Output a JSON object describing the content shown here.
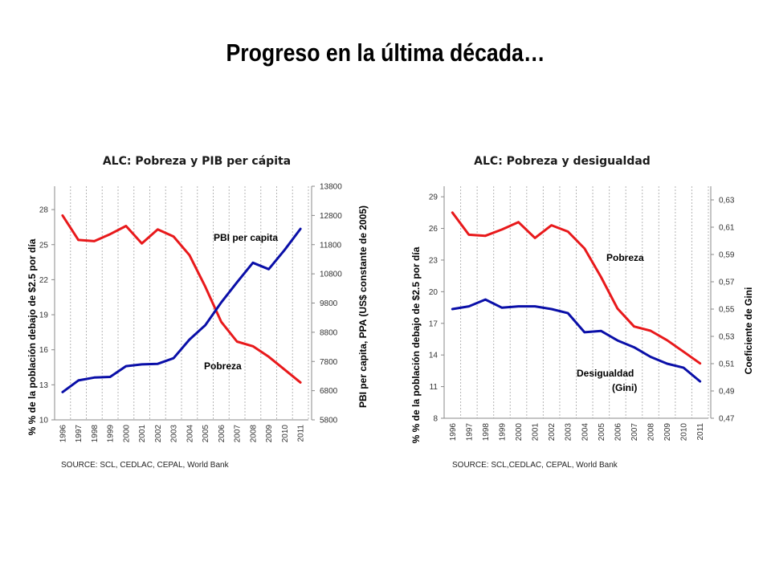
{
  "slide": {
    "title": "Progreso en la última década…"
  },
  "chart_data": [
    {
      "type": "line",
      "title": "ALC: Pobreza y PIB per cápita",
      "ylabel": "% % de la población debajo de $2.5 por día",
      "y2label": "PBI per capita, PPA (US$ constante de 2005)",
      "source": "SOURCE: SCL, CEDLAC, CEPAL, World Bank",
      "x": [
        "1996",
        "1997",
        "1998",
        "1999",
        "2000",
        "2001",
        "2002",
        "2003",
        "2004",
        "2005",
        "2006",
        "2007",
        "2008",
        "2009",
        "2010",
        "2011"
      ],
      "ylim": [
        10,
        30
      ],
      "yticks": [
        10,
        13,
        16,
        19,
        22,
        25,
        28
      ],
      "y2lim": [
        5800,
        13800
      ],
      "y2ticks": [
        5800,
        6800,
        7800,
        8800,
        9800,
        10800,
        11800,
        12800,
        13800
      ],
      "grid": true,
      "series": [
        {
          "name": "Pobreza",
          "axis": "left",
          "color": "#e8191b",
          "values": [
            27.5,
            25.4,
            25.3,
            25.9,
            26.6,
            25.1,
            26.3,
            25.7,
            24.1,
            21.4,
            18.4,
            16.7,
            16.3,
            15.4,
            14.3,
            13.2
          ]
        },
        {
          "name": "PBI per capita",
          "axis": "right",
          "color": "#0a0fa8",
          "values": [
            6750,
            7150,
            7250,
            7270,
            7640,
            7700,
            7720,
            7910,
            8550,
            9040,
            9820,
            10510,
            11180,
            10960,
            11620,
            12340
          ]
        }
      ]
    },
    {
      "type": "line",
      "title": "ALC: Pobreza y desigualdad",
      "ylabel": "% % de la población debajo de $2.5 por día",
      "y2label": "Coeficiente de Gini",
      "source": "SOURCE: SCL,CEDLAC, CEPAL, World Bank",
      "x": [
        "1996",
        "1997",
        "1998",
        "1999",
        "2000",
        "2001",
        "2002",
        "2003",
        "2004",
        "2005",
        "2006",
        "2007",
        "2008",
        "2009",
        "2010",
        "2011"
      ],
      "ylim": [
        8,
        30
      ],
      "yticks": [
        8,
        11,
        14,
        17,
        20,
        23,
        26,
        29
      ],
      "y2lim": [
        0.47,
        0.64
      ],
      "y2ticks": [
        "0,47",
        "0,49",
        "0,51",
        "0,53",
        "0,55",
        "0,57",
        "0,59",
        "0,61",
        "0,63"
      ],
      "grid": true,
      "series": [
        {
          "name": "Pobreza",
          "axis": "left",
          "color": "#e8191b",
          "values": [
            27.5,
            25.4,
            25.3,
            25.9,
            26.6,
            25.1,
            26.3,
            25.7,
            24.1,
            21.4,
            18.4,
            16.7,
            16.3,
            15.4,
            14.3,
            13.2
          ]
        },
        {
          "name": "Desigualdad (Gini)",
          "axis": "right",
          "color": "#0a0fa8",
          "values": [
            0.55,
            0.552,
            0.557,
            0.551,
            0.552,
            0.552,
            0.55,
            0.547,
            0.533,
            0.534,
            0.527,
            0.522,
            0.515,
            0.51,
            0.507,
            0.497
          ]
        }
      ],
      "annotations": [
        {
          "text": "Pobreza"
        },
        {
          "text": "Desigualdad"
        },
        {
          "text": "(Gini)"
        }
      ]
    }
  ]
}
